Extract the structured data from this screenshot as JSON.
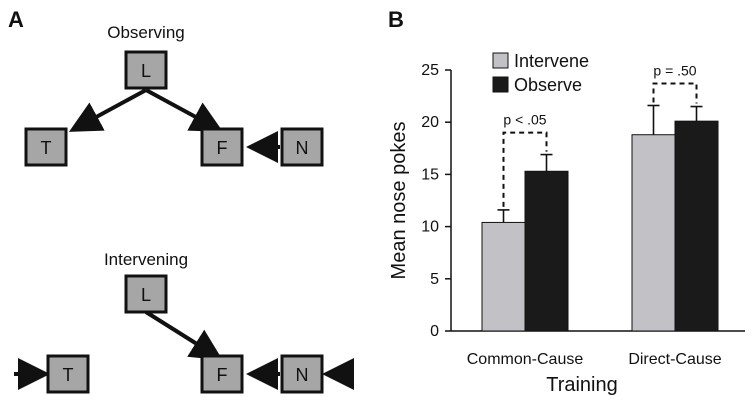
{
  "panel_a": {
    "letter": "A",
    "observing": {
      "title": "Observing",
      "nodes": [
        "L",
        "T",
        "F",
        "N"
      ]
    },
    "intervening": {
      "title": "Intervening",
      "nodes": [
        "L",
        "T",
        "F",
        "N"
      ]
    }
  },
  "panel_b": {
    "letter": "B"
  },
  "chart_data": {
    "type": "bar",
    "title": "",
    "xlabel": "Training",
    "ylabel": "Mean nose pokes",
    "categories": [
      "Common-Cause",
      "Direct-Cause"
    ],
    "series": [
      {
        "name": "Intervene",
        "values": [
          10.4,
          18.8
        ],
        "errors": [
          1.2,
          2.8
        ],
        "color": "#c2c2c6"
      },
      {
        "name": "Observe",
        "values": [
          15.3,
          20.1
        ],
        "errors": [
          1.6,
          1.4
        ],
        "color": "#1a1a1a"
      }
    ],
    "ylim": [
      0,
      25
    ],
    "yticks": [
      0,
      5,
      10,
      15,
      20,
      25
    ],
    "grid": false,
    "legend_position": "top-left",
    "annotations": [
      "p < .05",
      "p = .50"
    ]
  }
}
